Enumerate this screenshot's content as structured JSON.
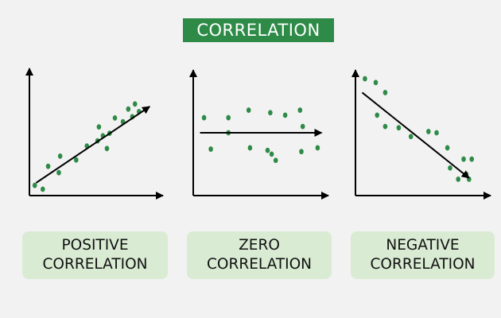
{
  "title": "CORRELATION",
  "colors": {
    "accent": "#2e8b47",
    "dot": "#2e8b47",
    "caption_bg": "#d9ebd3",
    "axis": "#000000"
  },
  "panels": [
    {
      "id": "positive",
      "caption_line1": "POSITIVE",
      "caption_line2": "CORRELATION",
      "trend": "positive",
      "points": [
        [
          0.04,
          0.08
        ],
        [
          0.1,
          0.05
        ],
        [
          0.14,
          0.23
        ],
        [
          0.22,
          0.18
        ],
        [
          0.23,
          0.31
        ],
        [
          0.35,
          0.28
        ],
        [
          0.43,
          0.39
        ],
        [
          0.51,
          0.43
        ],
        [
          0.52,
          0.54
        ],
        [
          0.55,
          0.47
        ],
        [
          0.58,
          0.37
        ],
        [
          0.6,
          0.49
        ],
        [
          0.64,
          0.61
        ],
        [
          0.7,
          0.58
        ],
        [
          0.74,
          0.68
        ],
        [
          0.77,
          0.62
        ],
        [
          0.79,
          0.72
        ],
        [
          0.82,
          0.66
        ]
      ]
    },
    {
      "id": "zero",
      "caption_line1": "ZERO",
      "caption_line2": "CORRELATION",
      "trend": "zero",
      "points": [
        [
          0.08,
          0.62
        ],
        [
          0.13,
          0.37
        ],
        [
          0.26,
          0.62
        ],
        [
          0.26,
          0.5
        ],
        [
          0.41,
          0.68
        ],
        [
          0.42,
          0.38
        ],
        [
          0.55,
          0.36
        ],
        [
          0.58,
          0.33
        ],
        [
          0.61,
          0.28
        ],
        [
          0.57,
          0.66
        ],
        [
          0.68,
          0.64
        ],
        [
          0.79,
          0.68
        ],
        [
          0.81,
          0.55
        ],
        [
          0.8,
          0.35
        ],
        [
          0.92,
          0.38
        ]
      ]
    },
    {
      "id": "negative",
      "caption_line1": "NEGATIVE",
      "caption_line2": "CORRELATION",
      "trend": "negative",
      "points": [
        [
          0.07,
          0.93
        ],
        [
          0.15,
          0.9
        ],
        [
          0.22,
          0.82
        ],
        [
          0.16,
          0.64
        ],
        [
          0.22,
          0.55
        ],
        [
          0.32,
          0.54
        ],
        [
          0.41,
          0.47
        ],
        [
          0.54,
          0.51
        ],
        [
          0.6,
          0.5
        ],
        [
          0.68,
          0.38
        ],
        [
          0.7,
          0.22
        ],
        [
          0.76,
          0.13
        ],
        [
          0.8,
          0.29
        ],
        [
          0.82,
          0.17
        ],
        [
          0.84,
          0.13
        ],
        [
          0.86,
          0.29
        ]
      ]
    }
  ]
}
